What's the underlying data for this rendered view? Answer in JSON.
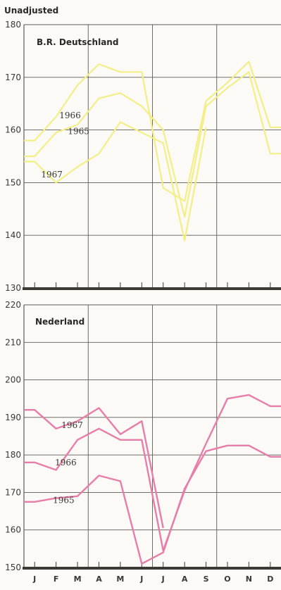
{
  "header_label": "Unadjusted",
  "months": [
    "J",
    "F",
    "M",
    "A",
    "M",
    "J",
    "J",
    "A",
    "S",
    "O",
    "N",
    "D"
  ],
  "chart_data": [
    {
      "type": "line",
      "title": "B.R. Deutschland",
      "ylim": [
        130,
        180
      ],
      "yticks": [
        130,
        140,
        150,
        160,
        170,
        180
      ],
      "color": "#f3ef86",
      "series": [
        {
          "name": "1965",
          "values": [
            158,
            162.5,
            168.5,
            172.5,
            171,
            171,
            149,
            146.5,
            165.5,
            169,
            173,
            160.5
          ],
          "label_month": 2.05,
          "label_value": 159.2
        },
        {
          "name": "1966",
          "values": [
            155,
            159.5,
            161,
            166,
            167,
            164.5,
            160,
            143.5,
            164.5,
            168,
            171,
            155.5
          ],
          "label_month": 1.65,
          "label_value": 162.2
        },
        {
          "name": "1967",
          "values": [
            154,
            150,
            153,
            155.5,
            161.5,
            159.5,
            157.5,
            139,
            160.5
          ],
          "label_month": 0.8,
          "label_value": 151
        }
      ]
    },
    {
      "type": "line",
      "title": "Nederland",
      "ylim": [
        150,
        220
      ],
      "yticks": [
        150,
        160,
        170,
        180,
        190,
        200,
        210,
        220
      ],
      "color": "#e77ea9",
      "series": [
        {
          "name": "1965",
          "values": [
            167.5,
            168.5,
            169,
            174.5,
            173,
            151,
            154,
            171,
            181,
            182.5,
            182.5,
            179.5
          ],
          "label_month": 1.35,
          "label_value": 167.2
        },
        {
          "name": "1966",
          "values": [
            178,
            176,
            184,
            187,
            184,
            184,
            154.5,
            170.5,
            183,
            195,
            196,
            193
          ],
          "label_month": 1.45,
          "label_value": 177.2
        },
        {
          "name": "1967",
          "values": [
            192,
            187,
            189,
            192.5,
            185.5,
            189,
            160.5
          ],
          "label_month": 1.75,
          "label_value": 187.2
        }
      ]
    }
  ]
}
